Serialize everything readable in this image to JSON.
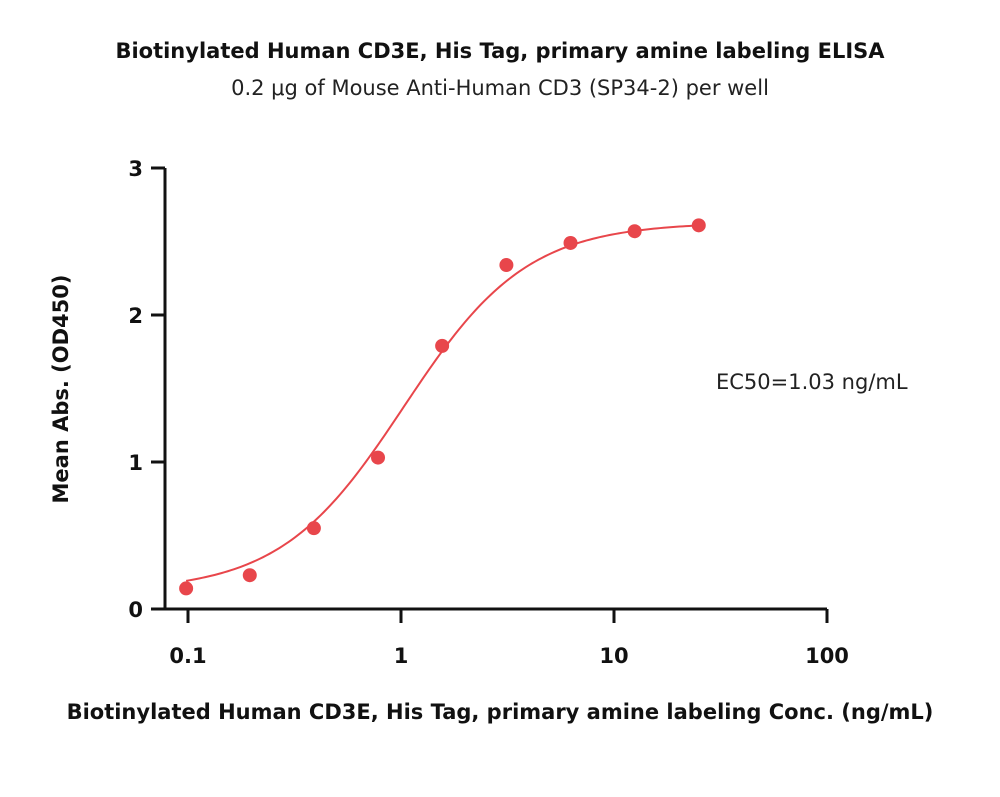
{
  "chart_data": {
    "type": "scatter",
    "title": "Biotinylated Human CD3E, His Tag, primary amine labeling ELISA",
    "subtitle": "0.2 μg of Mouse Anti-Human CD3 (SP34-2) per well",
    "xlabel": "Biotinylated Human CD3E, His Tag, primary amine labeling Conc. (ng/mL)",
    "ylabel": "Mean Abs. (OD450)",
    "xscale": "log",
    "xlim": [
      0.1,
      100
    ],
    "ylim": [
      0,
      3
    ],
    "xticks": [
      {
        "value": 0.1,
        "label": "0.1"
      },
      {
        "value": 1,
        "label": "1"
      },
      {
        "value": 10,
        "label": "10"
      },
      {
        "value": 100,
        "label": "100"
      }
    ],
    "yticks": [
      {
        "value": 0,
        "label": "0"
      },
      {
        "value": 1,
        "label": "1"
      },
      {
        "value": 2,
        "label": "2"
      },
      {
        "value": 3,
        "label": "3"
      }
    ],
    "grid": false,
    "series": [
      {
        "color": "#e8464b",
        "x": [
          0.098,
          0.195,
          0.39,
          0.78,
          1.56,
          3.125,
          6.25,
          12.5,
          25
        ],
        "y": [
          0.14,
          0.23,
          0.55,
          1.03,
          1.79,
          2.34,
          2.49,
          2.57,
          2.61
        ]
      }
    ],
    "fit_curve": {
      "model": "4PL",
      "bottom": 0.12,
      "top": 2.63,
      "ec50": 1.03,
      "hill": 1.5,
      "color": "#e8464b"
    },
    "annotations": [
      {
        "text": "EC50=1.03 ng/mL"
      }
    ]
  }
}
